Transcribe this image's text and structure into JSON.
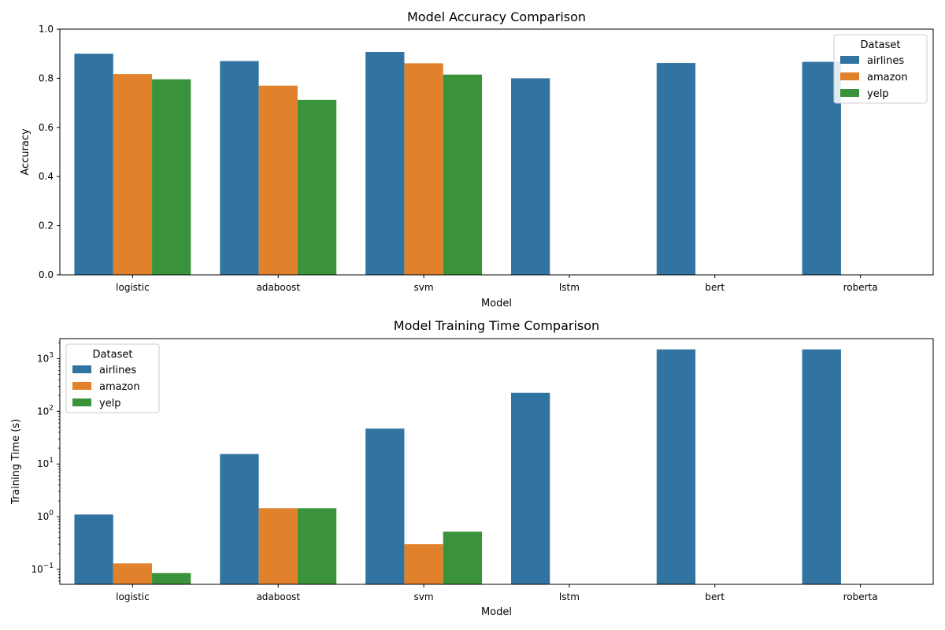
{
  "chart_data": [
    {
      "type": "bar",
      "title": "Model Accuracy Comparison",
      "xlabel": "Model",
      "ylabel": "Accuracy",
      "categories": [
        "logistic",
        "adaboost",
        "svm",
        "lstm",
        "bert",
        "roberta"
      ],
      "series": [
        {
          "name": "airlines",
          "color": "#3274a1",
          "values": [
            0.9,
            0.87,
            0.907,
            0.8,
            0.862,
            0.867
          ]
        },
        {
          "name": "amazon",
          "color": "#e1812c",
          "values": [
            0.817,
            0.77,
            0.861,
            null,
            null,
            null
          ]
        },
        {
          "name": "yelp",
          "color": "#3a923a",
          "values": [
            0.796,
            0.712,
            0.815,
            null,
            null,
            null
          ]
        }
      ],
      "ylim": [
        0,
        1.0
      ],
      "yscale": "linear",
      "yticks": [
        {
          "value": 0.0,
          "label": "0.0"
        },
        {
          "value": 0.2,
          "label": "0.2"
        },
        {
          "value": 0.4,
          "label": "0.4"
        },
        {
          "value": 0.6,
          "label": "0.6"
        },
        {
          "value": 0.8,
          "label": "0.8"
        },
        {
          "value": 1.0,
          "label": "1.0"
        }
      ],
      "legend": {
        "title": "Dataset",
        "position": "upper right"
      },
      "grid": false
    },
    {
      "type": "bar",
      "title": "Model Training Time Comparison",
      "xlabel": "Model",
      "ylabel": "Training Time (s)",
      "categories": [
        "logistic",
        "adaboost",
        "svm",
        "lstm",
        "bert",
        "roberta"
      ],
      "series": [
        {
          "name": "airlines",
          "color": "#3274a1",
          "values": [
            1.1,
            15.5,
            47,
            225,
            1500,
            1500
          ]
        },
        {
          "name": "amazon",
          "color": "#e1812c",
          "values": [
            0.13,
            1.45,
            0.3,
            null,
            null,
            null
          ]
        },
        {
          "name": "yelp",
          "color": "#3a923a",
          "values": [
            0.085,
            1.45,
            0.52,
            null,
            null,
            null
          ]
        }
      ],
      "ylim": [
        0.052,
        2400
      ],
      "yscale": "log",
      "yticks": [
        {
          "value": 0.1,
          "base": "10",
          "exp": "−1"
        },
        {
          "value": 1,
          "base": "10",
          "exp": "0"
        },
        {
          "value": 10,
          "base": "10",
          "exp": "1"
        },
        {
          "value": 100,
          "base": "10",
          "exp": "2"
        },
        {
          "value": 1000,
          "base": "10",
          "exp": "3"
        }
      ],
      "legend": {
        "title": "Dataset",
        "position": "upper left"
      },
      "grid": false
    }
  ]
}
